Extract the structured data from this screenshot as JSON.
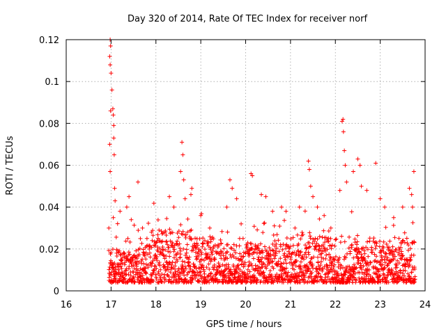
{
  "chart_data": {
    "type": "scatter",
    "title": "Day 320 of 2014, Rate Of TEC Index for receiver norf",
    "xlabel": "GPS time / hours",
    "ylabel": "ROTI / TECUs",
    "xlim": [
      16,
      24
    ],
    "ylim": [
      0,
      0.12
    ],
    "xticks": [
      "16",
      "17",
      "18",
      "19",
      "20",
      "21",
      "22",
      "23",
      "24"
    ],
    "yticks": [
      "0",
      "0.02",
      "0.04",
      "0.06",
      "0.08",
      "0.1",
      "0.12"
    ],
    "grid": true,
    "marker": "+",
    "color": "#ff0000",
    "series": [
      {
        "name": "ROTI",
        "points": [
          [
            16.98,
            0.12
          ],
          [
            16.99,
            0.117
          ],
          [
            16.97,
            0.112
          ],
          [
            16.98,
            0.108
          ],
          [
            17.0,
            0.104
          ],
          [
            17.02,
            0.096
          ],
          [
            16.99,
            0.086
          ],
          [
            17.04,
            0.087
          ],
          [
            17.05,
            0.084
          ],
          [
            17.06,
            0.079
          ],
          [
            17.06,
            0.073
          ],
          [
            16.97,
            0.07
          ],
          [
            17.07,
            0.065
          ],
          [
            16.98,
            0.057
          ],
          [
            17.08,
            0.049
          ],
          [
            17.09,
            0.043
          ],
          [
            16.95,
            0.03
          ],
          [
            17.05,
            0.035
          ],
          [
            17.2,
            0.038
          ],
          [
            17.35,
            0.04
          ],
          [
            17.4,
            0.045
          ],
          [
            17.6,
            0.052
          ],
          [
            17.45,
            0.034
          ],
          [
            17.7,
            0.03
          ],
          [
            17.8,
            0.025
          ],
          [
            17.9,
            0.028
          ],
          [
            18.05,
            0.025
          ],
          [
            18.3,
            0.045
          ],
          [
            18.4,
            0.04
          ],
          [
            18.55,
            0.057
          ],
          [
            18.58,
            0.071
          ],
          [
            18.6,
            0.065
          ],
          [
            18.62,
            0.053
          ],
          [
            18.65,
            0.044
          ],
          [
            18.8,
            0.049
          ],
          [
            18.78,
            0.046
          ],
          [
            19.0,
            0.036
          ],
          [
            19.2,
            0.03
          ],
          [
            19.58,
            0.04
          ],
          [
            19.65,
            0.053
          ],
          [
            19.7,
            0.049
          ],
          [
            19.8,
            0.044
          ],
          [
            19.9,
            0.032
          ],
          [
            20.12,
            0.056
          ],
          [
            20.15,
            0.055
          ],
          [
            20.35,
            0.046
          ],
          [
            20.45,
            0.045
          ],
          [
            20.6,
            0.038
          ],
          [
            20.8,
            0.04
          ],
          [
            20.9,
            0.038
          ],
          [
            21.1,
            0.03
          ],
          [
            21.2,
            0.04
          ],
          [
            21.4,
            0.062
          ],
          [
            21.42,
            0.058
          ],
          [
            21.45,
            0.05
          ],
          [
            21.5,
            0.045
          ],
          [
            21.6,
            0.04
          ],
          [
            21.75,
            0.036
          ],
          [
            21.9,
            0.03
          ],
          [
            22.1,
            0.048
          ],
          [
            22.15,
            0.081
          ],
          [
            22.17,
            0.082
          ],
          [
            22.18,
            0.076
          ],
          [
            22.2,
            0.067
          ],
          [
            22.22,
            0.06
          ],
          [
            22.25,
            0.052
          ],
          [
            22.4,
            0.057
          ],
          [
            22.5,
            0.063
          ],
          [
            22.55,
            0.06
          ],
          [
            22.58,
            0.05
          ],
          [
            22.7,
            0.048
          ],
          [
            22.9,
            0.061
          ],
          [
            23.0,
            0.044
          ],
          [
            23.1,
            0.04
          ],
          [
            23.3,
            0.035
          ],
          [
            23.5,
            0.04
          ],
          [
            23.65,
            0.049
          ],
          [
            23.7,
            0.046
          ],
          [
            23.75,
            0.057
          ],
          [
            23.72,
            0.04
          ]
        ],
        "band_note": "dense band of small values between hours 16.95 and 23.8"
      }
    ]
  }
}
